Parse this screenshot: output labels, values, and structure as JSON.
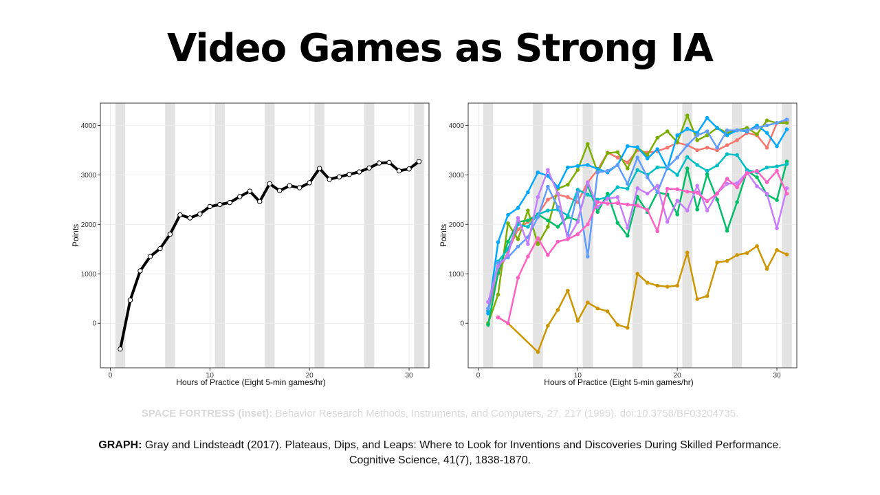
{
  "slide": {
    "title": "Video Games as Strong IA",
    "citation_inset": {
      "label": "SPACE FORTRESS (inset):",
      "text": "Behavior Research Methods, Instruments, and Computers, 27, 217 (1995). doi:10.3758/BF03204735."
    },
    "citation_graph": {
      "label": "GRAPH:",
      "line1": "Gray and Lindsteadt (2017). Plateaus, Dips, and Leaps: Where to Look for Inventions and Discoveries During Skilled Performance.",
      "line2": "Cognitive Science, 41(7), 1838-1870."
    }
  },
  "chart_data": [
    {
      "type": "line",
      "xlabel": "Hours of Practice (Eight 5-min games/hr)",
      "ylabel": "Points",
      "xlim": [
        -1,
        32
      ],
      "ylim": [
        -900,
        4450
      ],
      "xticks": [
        0,
        10,
        20,
        30
      ],
      "yticks": [
        0,
        1000,
        2000,
        3000,
        4000
      ],
      "shaded_bands": [
        [
          0.5,
          1.5
        ],
        [
          5.5,
          6.5
        ],
        [
          10.5,
          11.5
        ],
        [
          15.5,
          16.5
        ],
        [
          20.5,
          21.5
        ],
        [
          25.5,
          26.5
        ],
        [
          30.5,
          31.5
        ]
      ],
      "grid": true,
      "series": [
        {
          "color": "#000000",
          "x": [
            1,
            2,
            3,
            4,
            5,
            6,
            7,
            8,
            9,
            10,
            11,
            12,
            13,
            14,
            15,
            16,
            17,
            18,
            19,
            20,
            21,
            22,
            23,
            24,
            25,
            26,
            27,
            28,
            29,
            30,
            31
          ],
          "values": [
            -520,
            470,
            1060,
            1350,
            1510,
            1800,
            2190,
            2130,
            2210,
            2360,
            2400,
            2440,
            2560,
            2670,
            2460,
            2820,
            2680,
            2780,
            2740,
            2840,
            3130,
            2910,
            2960,
            3010,
            3060,
            3140,
            3240,
            3250,
            3080,
            3120,
            3270
          ]
        }
      ]
    },
    {
      "type": "line",
      "xlabel": "Hours of Practice (Eight 5-min games/hr)",
      "ylabel": "Points",
      "xlim": [
        -1,
        32
      ],
      "ylim": [
        -900,
        4450
      ],
      "xticks": [
        0,
        10,
        20,
        30
      ],
      "yticks": [
        0,
        1000,
        2000,
        3000,
        4000
      ],
      "shaded_bands": [
        [
          0.5,
          1.5
        ],
        [
          5.5,
          6.5
        ],
        [
          10.5,
          11.5
        ],
        [
          15.5,
          16.5
        ],
        [
          20.5,
          21.5
        ],
        [
          25.5,
          26.5
        ],
        [
          30.5,
          31.5
        ]
      ],
      "grid": true,
      "series": [
        {
          "color": "#f8766d",
          "x": [
            1,
            2,
            3,
            4,
            5,
            6,
            7,
            8,
            9,
            10,
            11,
            12,
            13,
            14,
            15,
            16,
            17,
            18,
            19,
            20,
            21,
            22,
            23,
            24,
            25,
            26,
            27,
            28,
            29,
            30,
            31
          ],
          "values": [
            250,
            1000,
            1450,
            1900,
            2050,
            2200,
            2500,
            2600,
            2550,
            2450,
            2850,
            3100,
            3450,
            3350,
            3250,
            3500,
            3450,
            3480,
            3550,
            3650,
            3600,
            3500,
            3550,
            3500,
            3600,
            3700,
            3850,
            3800,
            3550,
            4050,
            4100
          ]
        },
        {
          "color": "#cd9600",
          "x": [
            2,
            3,
            6,
            7,
            8,
            9,
            10,
            11,
            12,
            13,
            14,
            15,
            16,
            17,
            18,
            19,
            20,
            21,
            22,
            23,
            24,
            25,
            26,
            27,
            28,
            29,
            30,
            31
          ],
          "values": [
            120,
            0,
            -580,
            -50,
            270,
            660,
            50,
            420,
            300,
            240,
            -30,
            -90,
            1000,
            820,
            760,
            740,
            760,
            1430,
            490,
            550,
            1230,
            1260,
            1380,
            1420,
            1560,
            1100,
            1480,
            1390
          ]
        },
        {
          "color": "#7cae00",
          "x": [
            1,
            2,
            3,
            4,
            5,
            6,
            7,
            8,
            9,
            10,
            11,
            12,
            13,
            14,
            15,
            16,
            17,
            18,
            19,
            20,
            21,
            22,
            23,
            24,
            25,
            26,
            27,
            28,
            29,
            30,
            31
          ],
          "values": [
            0,
            580,
            2020,
            1700,
            2280,
            1600,
            1950,
            2720,
            2800,
            3100,
            3620,
            3050,
            3440,
            3460,
            3130,
            3550,
            3400,
            3750,
            3880,
            3660,
            4200,
            3700,
            3800,
            3950,
            3850,
            3900,
            3950,
            3820,
            4100,
            4050,
            4050
          ]
        },
        {
          "color": "#00be67",
          "x": [
            1,
            2,
            3,
            4,
            5,
            6,
            7,
            8,
            9,
            10,
            11,
            12,
            13,
            14,
            15,
            16,
            17,
            18,
            19,
            20,
            21,
            22,
            23,
            24,
            25,
            26,
            27,
            28,
            29,
            30,
            31
          ],
          "values": [
            -30,
            1020,
            1650,
            2050,
            2080,
            2200,
            2080,
            1950,
            2150,
            2080,
            2800,
            2250,
            2620,
            2030,
            1770,
            2550,
            2250,
            2650,
            2600,
            2200,
            3130,
            2300,
            3010,
            2500,
            1870,
            2450,
            3080,
            2950,
            2600,
            2490,
            3270
          ]
        },
        {
          "color": "#00bfc4",
          "x": [
            1,
            2,
            3,
            4,
            5,
            6,
            7,
            8,
            9,
            10,
            11,
            12,
            13,
            14,
            15,
            16,
            17,
            18,
            19,
            20,
            21,
            22,
            23,
            24,
            25,
            26,
            27,
            28,
            29,
            30,
            31
          ],
          "values": [
            250,
            1250,
            1500,
            2000,
            1950,
            2200,
            2280,
            2300,
            2180,
            2700,
            2600,
            2500,
            2550,
            2750,
            2720,
            3100,
            3000,
            3150,
            3150,
            3000,
            3360,
            3200,
            3080,
            3190,
            3420,
            3400,
            3100,
            3050,
            3150,
            3170,
            3220
          ]
        },
        {
          "color": "#00a9ff",
          "x": [
            1,
            2,
            3,
            4,
            5,
            6,
            7,
            8,
            9,
            10,
            11,
            12,
            13,
            14,
            15,
            16,
            17,
            18,
            19,
            20,
            21,
            22,
            23,
            24,
            25,
            26,
            27,
            28,
            29,
            30,
            31
          ],
          "values": [
            200,
            1640,
            2190,
            2330,
            2650,
            3050,
            2980,
            2750,
            3150,
            3180,
            3200,
            3120,
            3050,
            3200,
            3580,
            3560,
            3330,
            3520,
            3130,
            3800,
            3930,
            3850,
            4150,
            3950,
            3800,
            3900,
            3880,
            4000,
            3850,
            3580,
            3920
          ]
        },
        {
          "color": "#619cff",
          "x": [
            1,
            2,
            3,
            4,
            5,
            6,
            7,
            8,
            9,
            10,
            11,
            12,
            13,
            14,
            15,
            16,
            17,
            18,
            19,
            20,
            21,
            22,
            23,
            24,
            25,
            26,
            27,
            28,
            29,
            30,
            31
          ],
          "values": [
            300,
            1220,
            1330,
            1550,
            1740,
            2150,
            2760,
            2350,
            1780,
            2650,
            1350,
            3050,
            3080,
            3200,
            2820,
            3350,
            2950,
            2650,
            3150,
            3350,
            3600,
            3800,
            3880,
            3550,
            3900,
            3900,
            3900,
            3950,
            4000,
            4050,
            4120
          ]
        },
        {
          "color": "#c77cff",
          "x": [
            1,
            2,
            3,
            4,
            5,
            6,
            7,
            8,
            9,
            10,
            11,
            12,
            13,
            14,
            15,
            16,
            17,
            18,
            19,
            20,
            21,
            22,
            23,
            24,
            25,
            26,
            27,
            28,
            29,
            30,
            31
          ],
          "values": [
            430,
            1150,
            1380,
            2130,
            1600,
            2550,
            3100,
            2620,
            1700,
            2050,
            2850,
            2350,
            2520,
            2550,
            1930,
            2730,
            2620,
            2780,
            2050,
            2480,
            2280,
            2780,
            2280,
            2630,
            2820,
            2830,
            3050,
            2770,
            2620,
            1920,
            2730
          ]
        },
        {
          "color": "#ff61c3",
          "x": [
            2,
            3,
            4,
            5,
            6,
            7,
            8,
            9,
            10,
            11,
            12,
            13,
            14,
            15,
            16,
            17,
            18,
            19,
            20,
            21,
            22,
            23,
            24,
            25,
            26,
            27,
            28,
            29,
            30,
            31
          ],
          "values": [
            120,
            0,
            920,
            1350,
            1720,
            1380,
            1650,
            1700,
            1800,
            2000,
            2450,
            2420,
            2430,
            2400,
            2380,
            2290,
            1860,
            2720,
            2710,
            2660,
            2640,
            2470,
            2620,
            2920,
            2750,
            3030,
            3080,
            2850,
            3080,
            2620
          ]
        }
      ]
    }
  ]
}
